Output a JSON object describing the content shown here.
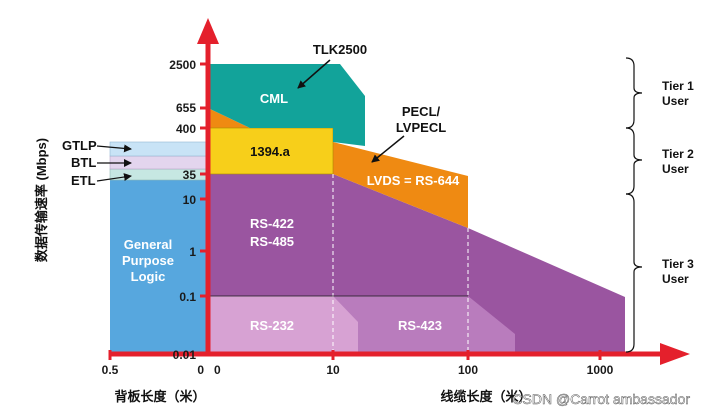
{
  "y_axis": {
    "title": "数据传输速率 (Mbps)",
    "ticks": [
      "2500",
      "655",
      "400",
      "35",
      "10",
      "1",
      "0.1",
      "0.01"
    ]
  },
  "x_axis": {
    "left_ticks": [
      "0.5",
      "0"
    ],
    "right_ticks": [
      "0",
      "10",
      "100",
      "1000"
    ],
    "left_title": "背板长度（米）",
    "right_title": "线缆长度（米）"
  },
  "regions": {
    "tlk2500": "TLK2500",
    "cml": "CML",
    "pecl_line1": "PECL/",
    "pecl_line2": "LVPECL",
    "lvds": "LVDS = RS-644",
    "ieee1394": "1394.a",
    "rs422": "RS-422",
    "rs485": "RS-485",
    "rs232": "RS-232",
    "rs423": "RS-423",
    "gpl_line1": "General",
    "gpl_line2": "Purpose",
    "gpl_line3": "Logic"
  },
  "left_labels": {
    "gtlp": "GTLP",
    "btl": "BTL",
    "etl": "ETL"
  },
  "tiers": [
    {
      "name": "Tier 1",
      "sub": "User"
    },
    {
      "name": "Tier 2",
      "sub": "User"
    },
    {
      "name": "Tier 3",
      "sub": "User"
    }
  ],
  "watermark": "CSDN @Carrot ambassador",
  "colors": {
    "axis_red": "#e4202c",
    "cml_teal": "#12a39a",
    "pecl_orange": "#ef8a12",
    "ieee1394_yellow": "#f7cf1a",
    "rs422_purple": "#9a55a0",
    "rs423_purple": "#b97cbd",
    "rs232_pink": "#d7a2d3",
    "gpl_blue": "#57a7de",
    "gtlp_blue": "#c8e3f6",
    "btl_lavender": "#e3d5ee",
    "etl_mint": "#c6e7e2"
  }
}
